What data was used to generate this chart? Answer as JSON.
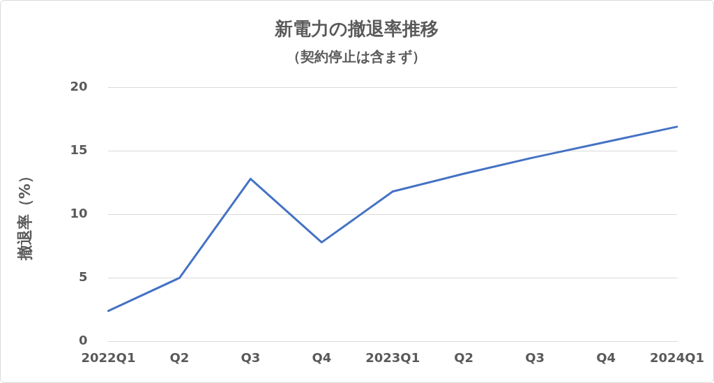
{
  "chart_data": {
    "type": "line",
    "title": "新電力の撤退率推移",
    "subtitle": "（契約停止は含まず）",
    "ylabel": "撤退率（%）",
    "categories": [
      "2022Q1",
      "Q2",
      "Q3",
      "Q4",
      "2023Q1",
      "Q2",
      "Q3",
      "Q4",
      "2024Q1"
    ],
    "series": [
      {
        "color": "#4472c4",
        "values": [
          2.4,
          5.0,
          12.8,
          7.8,
          11.8,
          13.2,
          14.5,
          15.7,
          16.9
        ]
      }
    ],
    "ylim": [
      0,
      20
    ],
    "yticks": [
      0,
      5,
      10,
      15,
      20
    ],
    "grid": "y",
    "legend": false,
    "marker": "none",
    "line_style": "solid"
  }
}
